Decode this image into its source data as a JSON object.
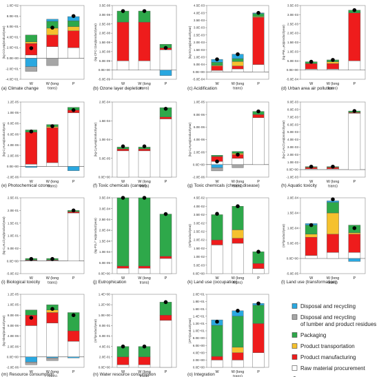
{
  "legend": {
    "items": [
      {
        "key": "disposal",
        "label": "Disposal and recycling",
        "color": "#2aa8e0",
        "marker": "square"
      },
      {
        "key": "lumber",
        "label": "Disposal and recycling of lumber and product residues",
        "color": "#a6a6a6",
        "marker": "square"
      },
      {
        "key": "packaging",
        "label": "Packaging",
        "color": "#2ea84a",
        "marker": "square"
      },
      {
        "key": "transport",
        "label": "Product transportation",
        "color": "#f5c12e",
        "marker": "square"
      },
      {
        "key": "manufacturing",
        "label": "Product manufacturing",
        "color": "#ee1c1c",
        "marker": "square"
      },
      {
        "key": "raw",
        "label": "Raw material procurement",
        "color": "#ffffff",
        "marker": "square"
      },
      {
        "key": "net",
        "label": "Net impact",
        "color": "#000000",
        "marker": "circle"
      }
    ]
  },
  "chart_data": [
    {
      "type": "bar",
      "stacked": true,
      "title": "(a) Climate change",
      "ylabel": "(kg-CO₂eq/product/year)",
      "ylim": [
        -4,
        10
      ],
      "yticks": [
        "-4.0E+01",
        "-2.0E+01",
        "0.0E+00",
        "2.0E+01",
        "4.0E+01",
        "6.0E+01",
        "8.0E+01",
        "1.0E+02"
      ],
      "categories": [
        "W",
        "W (long trans)",
        "P"
      ],
      "series": {
        "raw": [
          0.6,
          2.2,
          2.0
        ],
        "manufacturing": [
          2.2,
          2.2,
          3.2
        ],
        "transport": [
          0.3,
          1.3,
          0.8
        ],
        "packaging": [
          1.3,
          1.3,
          1.1
        ],
        "disposal": [
          -1.6,
          0.4,
          0.8
        ],
        "lumber": [
          -0.9,
          -1.4,
          0
        ]
      },
      "net": [
        1.9,
        5.8,
        8.0
      ]
    },
    {
      "type": "bar",
      "stacked": true,
      "title": "(b) Ozone layer depletion",
      "ylabel": "(kg-CFC-11eq/product/year)",
      "ylim": [
        -0.5,
        3.5
      ],
      "yticks": [
        "-5.0E-09",
        "0.0E+00",
        "5.0E-09",
        "1.0E-08",
        "1.5E-08",
        "2.0E-08",
        "2.5E-08",
        "3.0E-08",
        "3.5E-08"
      ],
      "categories": [
        "W",
        "W (long trans)",
        "P"
      ],
      "series": {
        "raw": [
          0.5,
          0.5,
          1.1
        ],
        "manufacturing": [
          2.1,
          2.1,
          0.1
        ],
        "transport": [
          0,
          0,
          0
        ],
        "packaging": [
          0.6,
          0.6,
          0.2
        ],
        "disposal": [
          0,
          0,
          -0.3
        ],
        "lumber": [
          0,
          0,
          0
        ]
      },
      "net": [
        3.2,
        3.2,
        1.2
      ]
    },
    {
      "type": "bar",
      "stacked": true,
      "title": "(c) Acidification",
      "ylabel": "(kg-SO₂eq/product/year)",
      "ylim": [
        -0.5,
        4.5
      ],
      "yticks": [
        "-5.0E-04",
        "0.0E+00",
        "5.0E-04",
        "1.0E-03",
        "1.5E-03",
        "2.0E-03",
        "2.5E-03",
        "3.0E-03",
        "3.5E-03",
        "4.0E-03",
        "4.5E-03"
      ],
      "categories": [
        "W",
        "W (long trans)",
        "P"
      ],
      "series": {
        "raw": [
          0.1,
          0.2,
          0.5
        ],
        "manufacturing": [
          0.3,
          0.2,
          3.2
        ],
        "transport": [
          0.05,
          0.3,
          0.05
        ],
        "packaging": [
          0.2,
          0.2,
          0.2
        ],
        "disposal": [
          0.2,
          0.3,
          0.05
        ],
        "lumber": [
          0,
          0,
          0
        ]
      },
      "net": [
        0.85,
        1.2,
        4.0
      ]
    },
    {
      "type": "bar",
      "stacked": true,
      "title": "(d) Urban area air pollution",
      "ylabel": "(kg-PM₂.₅eq/product/year)",
      "ylim": [
        -0.5,
        3.5
      ],
      "yticks": [
        "-5.0E-04",
        "0.0E+00",
        "5.0E-04",
        "1.0E-03",
        "1.5E-03",
        "2.0E-03",
        "2.5E-03",
        "3.0E-03",
        "3.5E-03"
      ],
      "categories": [
        "W",
        "W (long trans)",
        "P"
      ],
      "series": {
        "raw": [
          0.05,
          0.05,
          0.5
        ],
        "manufacturing": [
          0.3,
          0.3,
          2.6
        ],
        "transport": [
          0,
          0.1,
          0
        ],
        "packaging": [
          0.1,
          0.1,
          0.15
        ],
        "disposal": [
          0,
          0,
          0
        ],
        "lumber": [
          0,
          0,
          0
        ]
      },
      "net": [
        0.45,
        0.55,
        3.25
      ]
    },
    {
      "type": "bar",
      "stacked": true,
      "title": "(e) Photochemical ozone",
      "ylabel": "(kg-C₂H₄eq/product/year)",
      "ylim": [
        -0.2,
        1.2
      ],
      "yticks": [
        "-2.0E-06",
        "0.0E+00",
        "2.0E-06",
        "4.0E-06",
        "6.0E-06",
        "8.0E-06",
        "1.0E-05",
        "1.2E-05"
      ],
      "categories": [
        "W",
        "W (long trans)",
        "P"
      ],
      "series": {
        "raw": [
          0.04,
          0.07,
          1.0
        ],
        "manufacturing": [
          0.6,
          0.65,
          0.05
        ],
        "transport": [
          0,
          0.02,
          0
        ],
        "packaging": [
          0.04,
          0.04,
          0.05
        ],
        "disposal": [
          -0.02,
          0,
          -0.08
        ],
        "lumber": [
          0,
          0,
          0
        ]
      },
      "net": [
        0.65,
        0.75,
        1.05
      ]
    },
    {
      "type": "bar",
      "stacked": true,
      "title": "(f) Toxic chemicals (cancer)",
      "ylabel": "(kg-C₆H₆eq/product/year)",
      "ylim": [
        0,
        2
      ],
      "yticks": [
        "0.0E+00",
        "5.0E-05",
        "1.0E-04",
        "1.5E-04",
        "2.0E-04"
      ],
      "categories": [
        "W",
        "W (long trans)",
        "P"
      ],
      "series": {
        "raw": [
          0.7,
          0.7,
          1.55
        ],
        "manufacturing": [
          0.05,
          0.05,
          0.05
        ],
        "transport": [
          0,
          0,
          0
        ],
        "packaging": [
          0.05,
          0.05,
          0.25
        ],
        "disposal": [
          0,
          0,
          0
        ],
        "lumber": [
          0,
          0,
          0
        ]
      },
      "net": [
        0.82,
        0.82,
        1.82
      ]
    },
    {
      "type": "bar",
      "stacked": true,
      "title": "(g) Toxic chemicals (chronic disease)",
      "ylabel": "(kg-C₆H₆eq/product/year)",
      "ylim": [
        -0.2,
        1
      ],
      "yticks": [
        "-2.0E-06",
        "0.0E+00",
        "2.0E-06",
        "4.0E-06",
        "6.0E-06",
        "8.0E-06",
        "1.0E-05"
      ],
      "categories": [
        "W",
        "W (long trans)",
        "P"
      ],
      "series": {
        "raw": [
          0.05,
          0.1,
          0.75
        ],
        "manufacturing": [
          0.08,
          0.06,
          0.05
        ],
        "transport": [
          0,
          0.02,
          0
        ],
        "packaging": [
          0.02,
          0.03,
          0.05
        ],
        "disposal": [
          -0.05,
          0,
          0
        ],
        "lumber": [
          -0.05,
          -0.05,
          0
        ]
      },
      "net": [
        0.05,
        0.16,
        0.85
      ]
    },
    {
      "type": "bar",
      "stacked": true,
      "title": "(h) Aquatic toxicity",
      "ylabel": "(kg-C₆H₄Cl₂eq/product/year)",
      "ylim": [
        -1,
        9
      ],
      "yticks": [
        "-1.0E-03",
        "0.0E+00",
        "1.0E-03",
        "2.0E-03",
        "3.0E-03",
        "4.0E-03",
        "5.0E-03",
        "6.0E-03",
        "7.0E-03",
        "8.0E-03",
        "9.0E-03"
      ],
      "categories": [
        "W",
        "W (long trans)",
        "P"
      ],
      "series": {
        "raw": [
          0.1,
          0.1,
          7.5
        ],
        "manufacturing": [
          0.2,
          0.2,
          0.1
        ],
        "transport": [
          0,
          0,
          0
        ],
        "packaging": [
          0.1,
          0.1,
          0.2
        ],
        "disposal": [
          0,
          0,
          0
        ],
        "lumber": [
          0,
          0,
          0
        ]
      },
      "net": [
        0.4,
        0.4,
        7.8
      ]
    },
    {
      "type": "bar",
      "stacked": true,
      "title": "(i) Biological toxicity",
      "ylabel": "(kg-C₆H₄Cl₂eq/product/year)",
      "ylim": [
        -0.5,
        2.5
      ],
      "yticks": [
        "-5.0E-02",
        "0.0E+00",
        "5.0E-02",
        "1.0E-01",
        "1.5E-01",
        "2.0E-01",
        "2.5E-01"
      ],
      "categories": [
        "W",
        "W (long trans)",
        "P"
      ],
      "series": {
        "raw": [
          0.02,
          0.02,
          1.9
        ],
        "manufacturing": [
          0.02,
          0.02,
          0.05
        ],
        "transport": [
          0,
          0,
          0
        ],
        "packaging": [
          0.06,
          0.06,
          0.05
        ],
        "disposal": [
          0,
          0,
          0
        ],
        "lumber": [
          0,
          0,
          0
        ]
      },
      "net": [
        0.08,
        0.08,
        2.0
      ]
    },
    {
      "type": "bar",
      "stacked": true,
      "title": "(j) Eutrophication",
      "ylabel": "(kg-PO₄³⁻eq/product/year)",
      "ylim": [
        0,
        3.5
      ],
      "yticks": [
        "0.0E+00",
        "5.0E-05",
        "1.0E-04",
        "1.5E-04",
        "2.0E-04",
        "2.5E-04",
        "3.0E-04",
        "3.5E-04"
      ],
      "categories": [
        "W",
        "W (long trans)",
        "P"
      ],
      "series": {
        "raw": [
          0.25,
          0.25,
          0.7
        ],
        "manufacturing": [
          0.1,
          0.1,
          0.1
        ],
        "transport": [
          0,
          0,
          0
        ],
        "packaging": [
          3.15,
          3.15,
          1.95
        ],
        "disposal": [
          0,
          0,
          0
        ],
        "lumber": [
          0,
          0,
          0
        ]
      },
      "net": [
        3.5,
        3.5,
        2.75
      ]
    },
    {
      "type": "bar",
      "stacked": true,
      "title": "(k) Land use (occupation)",
      "ylabel": "(m²/product/year)",
      "ylim": [
        0,
        4.5
      ],
      "yticks": [
        "0.0E+00",
        "5.0E-03",
        "1.0E-02",
        "1.5E-02",
        "2.0E-02",
        "2.5E-02",
        "3.0E-02",
        "3.5E-02",
        "4.0E-02",
        "4.5E-02"
      ],
      "categories": [
        "W",
        "W (long trans)",
        "P"
      ],
      "series": {
        "raw": [
          1.7,
          1.8,
          0.3
        ],
        "manufacturing": [
          0.3,
          0.3,
          0.3
        ],
        "transport": [
          0,
          0.5,
          0
        ],
        "packaging": [
          1.5,
          1.4,
          0.7
        ],
        "disposal": [
          0,
          0,
          0
        ],
        "lumber": [
          0,
          0,
          0
        ]
      },
      "net": [
        3.55,
        4.0,
        1.3
      ]
    },
    {
      "type": "bar",
      "stacked": true,
      "title": "(l) Land use (transformation)",
      "ylabel": "(m²/product/year)",
      "ylim": [
        -0.5,
        2.0
      ],
      "yticks": [
        "-5.0E-05",
        "0.0E+00",
        "5.0E-05",
        "1.0E-04",
        "1.5E-04",
        "2.0E-04"
      ],
      "categories": [
        "W",
        "W (long trans)",
        "P"
      ],
      "series": {
        "raw": [
          0.1,
          0.2,
          0.2
        ],
        "manufacturing": [
          0.6,
          0.6,
          0.6
        ],
        "transport": [
          0.1,
          0.7,
          0.05
        ],
        "packaging": [
          0.3,
          0.35,
          0.25
        ],
        "disposal": [
          0.05,
          0.05,
          -0.1
        ],
        "lumber": [
          0,
          0,
          0
        ]
      },
      "net": [
        1.1,
        1.95,
        1.0
      ]
    },
    {
      "type": "bar",
      "stacked": true,
      "title": "(m) Resource consumption",
      "ylabel": "(kg-Sbeq/product/year)",
      "ylim": [
        -0.2,
        1.2
      ],
      "yticks": [
        "-2.0E-06",
        "0.0E+00",
        "2.0E-06",
        "4.0E-06",
        "6.0E-06",
        "8.0E-06",
        "1.0E-05",
        "1.2E-05"
      ],
      "categories": [
        "W",
        "W (long trans)",
        "P"
      ],
      "series": {
        "raw": [
          0.6,
          0.65,
          0.3
        ],
        "manufacturing": [
          0.2,
          0.2,
          0.2
        ],
        "transport": [
          0,
          0.05,
          0
        ],
        "packaging": [
          0.1,
          0.1,
          0.35
        ],
        "disposal": [
          -0.1,
          -0.02,
          -0.02
        ],
        "lumber": [
          -0.05,
          -0.05,
          0
        ]
      },
      "net": [
        0.75,
        0.92,
        0.8
      ]
    },
    {
      "type": "bar",
      "stacked": true,
      "title": "(n) Water resource consumption",
      "ylabel": "(m³/product/year)",
      "ylim": [
        0,
        1.4
      ],
      "yticks": [
        "0.0E+00",
        "2.0E-01",
        "4.0E-01",
        "6.0E-01",
        "8.0E-01",
        "1.0E+00",
        "1.2E+00",
        "1.4E+00"
      ],
      "categories": [
        "W",
        "W (long trans)",
        "P"
      ],
      "series": {
        "raw": [
          0.05,
          0.05,
          0.9
        ],
        "manufacturing": [
          0.15,
          0.15,
          0.1
        ],
        "transport": [
          0,
          0,
          0
        ],
        "packaging": [
          0.2,
          0.2,
          0.25
        ],
        "disposal": [
          0,
          0,
          0
        ],
        "lumber": [
          0,
          0,
          0
        ]
      },
      "net": [
        0.4,
        0.4,
        1.25
      ]
    },
    {
      "type": "bar",
      "stacked": true,
      "title": "(o) Integration",
      "ylabel": "(JPY/product/year)",
      "ylim": [
        0,
        2.0
      ],
      "yticks": [
        "0.0E+00",
        "2.0E+00",
        "4.0E+00",
        "6.0E+00",
        "8.0E+00",
        "1.0E+01",
        "1.2E+01",
        "1.4E+01",
        "1.6E+01",
        "1.8E+01",
        "2.0E+01"
      ],
      "categories": [
        "W",
        "W (long trans)",
        "P"
      ],
      "series": {
        "raw": [
          0.2,
          0.2,
          0.4
        ],
        "manufacturing": [
          0.1,
          0.2,
          0.8
        ],
        "transport": [
          0,
          0.15,
          0
        ],
        "packaging": [
          0.85,
          0.85,
          0.5
        ],
        "disposal": [
          0.15,
          0.15,
          0.05
        ],
        "lumber": [
          0,
          0,
          0
        ]
      },
      "net": [
        1.25,
        1.55,
        1.75
      ]
    }
  ]
}
